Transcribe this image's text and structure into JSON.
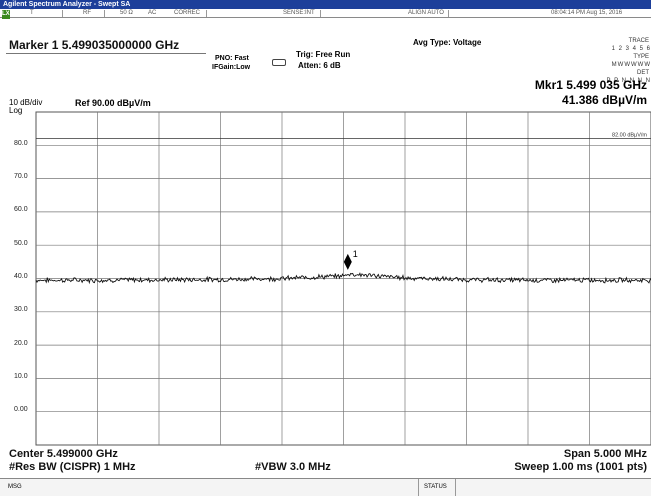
{
  "window": {
    "title": "Agilent Spectrum Analyzer - Swept SA"
  },
  "status_bar": {
    "indicator": "LXI",
    "t": "T",
    "rf": "RF",
    "impedance": "50 Ω",
    "ac": "AC",
    "correc": "CORREC",
    "sense": "SENSE:INT",
    "align": "ALIGN AUTO",
    "datetime": "08:04:14 PM Aug 15, 2016"
  },
  "marker": {
    "header": "Marker 1 5.499035000000 GHz",
    "pno": "PNO: Fast",
    "ifgain": "IFGain:Low",
    "trig": "Trig: Free Run",
    "atten": "Atten: 6 dB",
    "avg_type": "Avg Type: Voltage",
    "mkr_freq": "Mkr1 5.499 035 GHz",
    "mkr_level": "41.386 dBµV/m",
    "marker_label": "1"
  },
  "trace_table": {
    "trace_label": "TRACE",
    "trace_value": "1 2 3 4 5 6",
    "type_label": "TYPE",
    "type_value": "MWWWWW",
    "det_label": "DET",
    "det_value": "P P N N N N"
  },
  "scale": {
    "div": "10 dB/div",
    "log": "Log",
    "ref": "Ref 90.00 dBµV/m",
    "limit_label": "82.00 dBµV/m",
    "y_ticks": [
      "80.0",
      "70.0",
      "60.0",
      "50.0",
      "40.0",
      "30.0",
      "20.0",
      "10.0",
      "0.00"
    ]
  },
  "footer": {
    "center": "Center 5.499000 GHz",
    "res_bw": "#Res BW (CISPR)  1 MHz",
    "vbw": "#VBW 3.0 MHz",
    "span": "Span 5.000 MHz",
    "sweep": "Sweep  1.00 ms (1001 pts)"
  },
  "message_bar": {
    "msg": "MSG",
    "status": "STATUS"
  },
  "chart_data": {
    "type": "line",
    "title": "",
    "xlabel": "",
    "ylabel": "",
    "xlim": [
      5.4965,
      5.5015
    ],
    "ylim": [
      -10,
      90
    ],
    "grid": true,
    "series": [
      {
        "x": [
          5.4965,
          5.497,
          5.4975,
          5.498,
          5.4985,
          5.499,
          5.49904,
          5.4995,
          5.5,
          5.5005,
          5.501,
          5.5015
        ],
        "values": [
          39.5,
          39.5,
          39.6,
          39.7,
          40.0,
          40.8,
          41.4,
          40.2,
          39.6,
          39.5,
          39.5,
          39.5
        ]
      }
    ],
    "limit_line": 82.0,
    "marker": {
      "x": 5.499035,
      "y": 41.386
    }
  }
}
